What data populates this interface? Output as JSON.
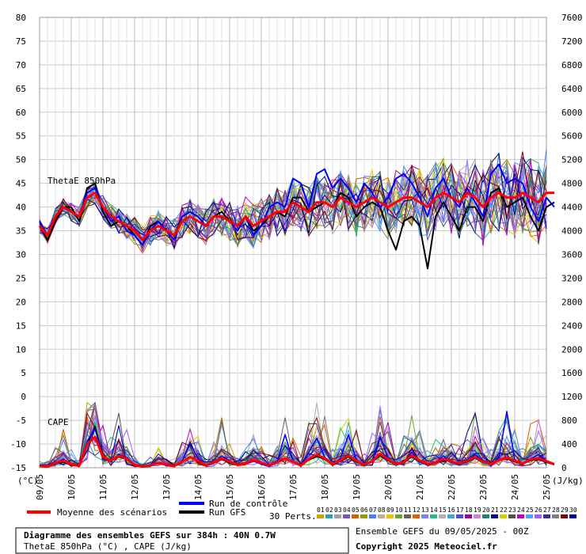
{
  "chart_data": {
    "type": "line",
    "title": "Diagramme des ensembles GEFS sur 384h : 40N 0.7W",
    "subtitle": "ThetaE 850hPa (°C) , CAPE (J/kg)",
    "run_info": "Ensemble GEFS du 09/05/2025 - 00Z",
    "copyright": "Copyright 2025 Meteociel.fr",
    "panel_labels": [
      "ThetaE 850hPa",
      "CAPE"
    ],
    "y_left_label": "(°C)",
    "y_right_label": "(J/kg)",
    "y_left_ticks": [
      80,
      75,
      70,
      65,
      60,
      55,
      50,
      45,
      40,
      35,
      30,
      25,
      20,
      15,
      10,
      5,
      0,
      -5,
      -10,
      -15
    ],
    "y_right_ticks": [
      7600,
      7200,
      6800,
      6400,
      6000,
      5600,
      5200,
      4800,
      4400,
      4000,
      3600,
      3200,
      2800,
      2400,
      2000,
      1600,
      1200,
      800,
      400,
      0
    ],
    "ylim_left": [
      -15,
      80
    ],
    "ylim_right": [
      0,
      7600
    ],
    "x_ticks": [
      "09/05",
      "10/05",
      "11/05",
      "12/05",
      "13/05",
      "14/05",
      "15/05",
      "16/05",
      "17/05",
      "18/05",
      "19/05",
      "20/05",
      "21/05",
      "22/05",
      "23/05",
      "24/05",
      "25/05"
    ],
    "time_step_hours": 6,
    "legend": {
      "mean": "Moyenne des scénarios",
      "control": "Run de contrôle",
      "gfs": "Run GFS",
      "perts": "30 Perts."
    },
    "pert_numbers": [
      "01",
      "02",
      "03",
      "04",
      "05",
      "06",
      "07",
      "08",
      "09",
      "10",
      "11",
      "12",
      "13",
      "14",
      "15",
      "16",
      "17",
      "18",
      "19",
      "20",
      "21",
      "22",
      "23",
      "24",
      "25",
      "26",
      "27",
      "28",
      "29",
      "30"
    ],
    "pert_colors": [
      "#d0a000",
      "#2aa0a0",
      "#a0a0a0",
      "#8050c0",
      "#d06000",
      "#9a9a00",
      "#4080ff",
      "#c0b090",
      "#f0c000",
      "#70a030",
      "#606060",
      "#e06000",
      "#8080ff",
      "#20c080",
      "#b0b0b0",
      "#40a0e0",
      "#5050c0",
      "#a000a0",
      "#d080d0",
      "#208080",
      "#000080",
      "#d0d000",
      "#505050",
      "#c000c0",
      "#50a0ff",
      "#a060ff",
      "#303090",
      "#808080",
      "#800000",
      "#0000a0"
    ],
    "colors": {
      "mean": "#ff0000",
      "control": "#0000ff",
      "gfs": "#000000"
    },
    "mean_thetae": [
      36,
      34,
      38,
      40,
      39,
      38,
      42,
      43,
      40,
      38,
      37,
      36,
      35,
      33,
      35,
      36,
      35,
      34,
      37,
      38,
      37,
      36,
      38,
      38,
      37,
      36,
      38,
      36,
      37,
      38,
      39,
      39,
      41,
      40,
      39,
      41,
      41,
      40,
      42,
      41,
      40,
      41,
      42,
      41,
      40,
      41,
      42,
      42,
      41,
      40,
      42,
      43,
      42,
      41,
      43,
      42,
      40,
      42,
      43,
      42,
      42,
      43,
      42,
      41,
      43,
      43
    ],
    "control_thetae": [
      37,
      34,
      38,
      40,
      39,
      38,
      43,
      44,
      40,
      37,
      38,
      35,
      34,
      32,
      35,
      37,
      35,
      33,
      38,
      39,
      38,
      36,
      38,
      38,
      37,
      35,
      38,
      34,
      36,
      40,
      41,
      40,
      46,
      45,
      40,
      47,
      48,
      44,
      46,
      44,
      41,
      45,
      43,
      40,
      42,
      46,
      47,
      45,
      42,
      38,
      44,
      46,
      42,
      40,
      44,
      41,
      38,
      47,
      49,
      45,
      46,
      45,
      40,
      37,
      42,
      40
    ],
    "gfs_thetae": [
      36,
      33,
      37,
      40,
      40,
      37,
      44,
      45,
      39,
      36,
      37,
      36,
      34,
      32,
      36,
      37,
      35,
      34,
      38,
      39,
      38,
      36,
      38,
      39,
      37,
      36,
      38,
      35,
      36,
      38,
      39,
      38,
      42,
      42,
      39,
      40,
      41,
      40,
      43,
      42,
      38,
      40,
      41,
      40,
      35,
      31,
      37,
      38,
      36,
      27,
      38,
      41,
      38,
      35,
      40,
      40,
      37,
      43,
      44,
      40,
      41,
      42,
      38,
      35,
      40,
      41
    ],
    "mean_cape": [
      30,
      20,
      80,
      120,
      60,
      30,
      400,
      520,
      180,
      120,
      200,
      150,
      50,
      20,
      40,
      80,
      60,
      30,
      100,
      180,
      120,
      40,
      90,
      160,
      100,
      50,
      70,
      130,
      80,
      40,
      90,
      160,
      100,
      40,
      150,
      220,
      160,
      60,
      130,
      200,
      120,
      50,
      110,
      240,
      140,
      60,
      100,
      210,
      120,
      60,
      90,
      150,
      110,
      70,
      120,
      180,
      100,
      60,
      130,
      170,
      120,
      70,
      140,
      160,
      110,
      60
    ],
    "control_cape": [
      20,
      10,
      60,
      150,
      50,
      20,
      450,
      650,
      200,
      100,
      230,
      160,
      40,
      10,
      30,
      70,
      50,
      20,
      120,
      400,
      160,
      30,
      80,
      200,
      120,
      40,
      60,
      110,
      60,
      20,
      100,
      560,
      110,
      30,
      260,
      500,
      180,
      50,
      160,
      560,
      130,
      40,
      120,
      520,
      160,
      40,
      90,
      260,
      100,
      40,
      80,
      200,
      90,
      50,
      110,
      220,
      120,
      60,
      160,
      950,
      140,
      60,
      150,
      220,
      120,
      70
    ],
    "gfs_cape": [
      30,
      20,
      70,
      90,
      50,
      30,
      380,
      700,
      160,
      110,
      180,
      140,
      40,
      20,
      40,
      70,
      50,
      20,
      90,
      180,
      100,
      30,
      80,
      140,
      80,
      40,
      60,
      120,
      70,
      30,
      80,
      150,
      90,
      30,
      130,
      190,
      140,
      50,
      110,
      180,
      100,
      40,
      100,
      200,
      120,
      50,
      90,
      180,
      100,
      50,
      80,
      130,
      100,
      60,
      100,
      160,
      90,
      50,
      120,
      150,
      100,
      60,
      120,
      140,
      90,
      50
    ]
  }
}
